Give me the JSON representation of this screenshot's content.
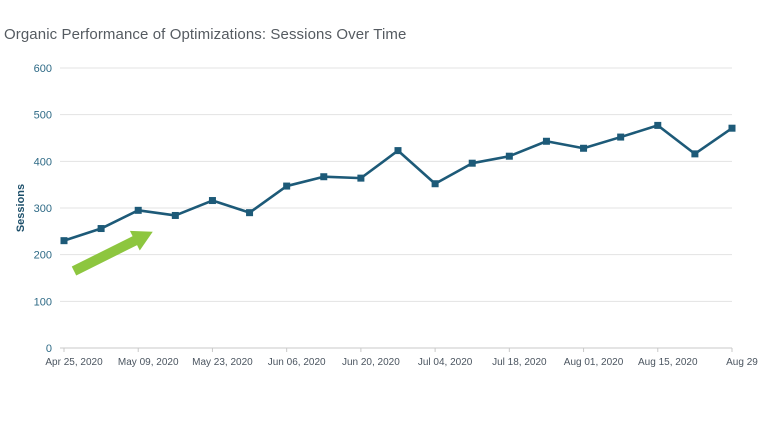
{
  "chart_data": {
    "type": "line",
    "title": "Organic Performance of Optimizations: Sessions Over Time",
    "xlabel": "",
    "ylabel": "Sessions",
    "ylim": [
      0,
      600
    ],
    "yticks": [
      0,
      100,
      200,
      300,
      400,
      500,
      600
    ],
    "grid": true,
    "legend": "none",
    "x": [
      "Apr 25, 2020",
      "May 02, 2020",
      "May 09, 2020",
      "May 16, 2020",
      "May 23, 2020",
      "May 30, 2020",
      "Jun 06, 2020",
      "Jun 13, 2020",
      "Jun 20, 2020",
      "Jun 27, 2020",
      "Jul 04, 2020",
      "Jul 11, 2020",
      "Jul 18, 2020",
      "Jul 25, 2020",
      "Aug 01, 2020",
      "Aug 08, 2020",
      "Aug 15, 2020",
      "Aug 22, 2020",
      "Aug 29"
    ],
    "xtick_labels": [
      "Apr 25, 2020",
      "May 09, 2020",
      "May 23, 2020",
      "Jun 06, 2020",
      "Jun 20, 2020",
      "Jul 04, 2020",
      "Jul 18, 2020",
      "Aug 01, 2020",
      "Aug 15, 2020",
      "Aug 29"
    ],
    "series": [
      {
        "values": [
          230,
          256,
          295,
          284,
          316,
          290,
          347,
          367,
          364,
          423,
          352,
          396,
          411,
          443,
          428,
          452,
          477,
          416,
          471
        ]
      }
    ],
    "annotation": {
      "type": "arrow",
      "direction": "up-right",
      "meaning": "upward trend"
    },
    "colors": {
      "line": "#1d5a78",
      "grid": "#e3e3e3",
      "arrow": "#8dc63f",
      "axis_text": "#2e6a86"
    }
  }
}
